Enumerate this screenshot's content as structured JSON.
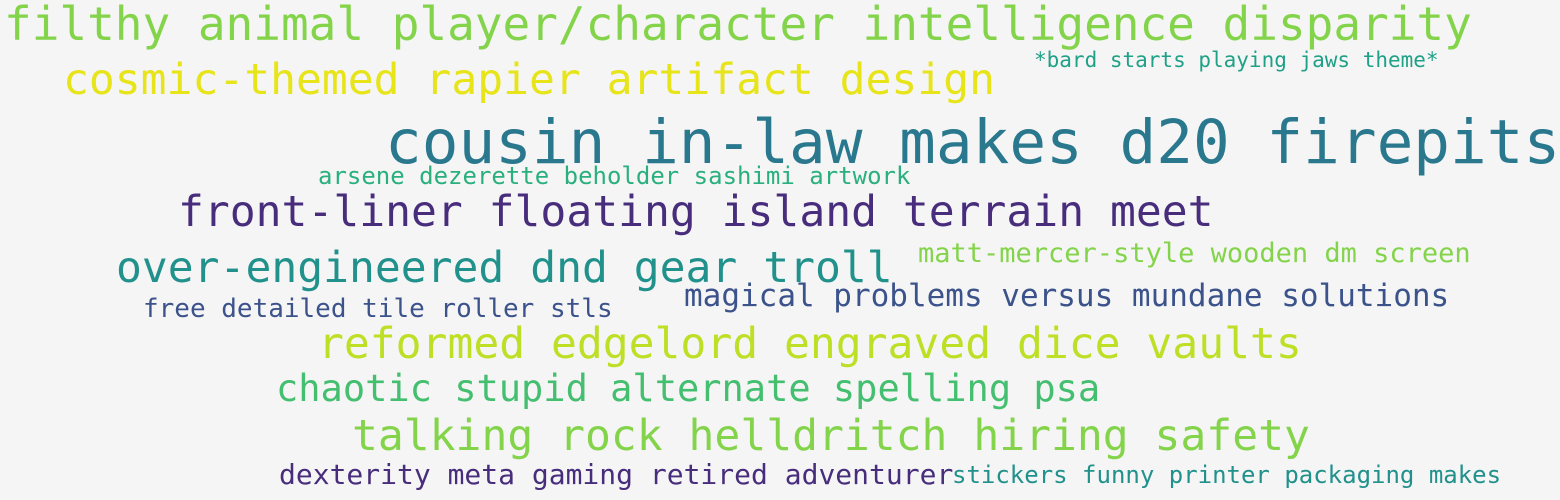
{
  "words": [
    "filthy animal player/character intelligence disparity",
    "*bard starts playing jaws theme*",
    "cosmic-themed rapier artifact design",
    "cousin in-law makes d20 firepits",
    "arsene dezerette beholder sashimi artwork",
    "front-liner floating island terrain meet",
    "matt-mercer-style wooden dm screen",
    "over-engineered dnd gear troll",
    "magical problems versus mundane solutions",
    "free detailed tile roller stls",
    "reformed edgelord engraved dice vaults",
    "chaotic stupid alternate spelling psa",
    "talking rock helldritch hiring safety",
    "dexterity meta gaming retired adventurer",
    "stickers funny printer packaging makes"
  ],
  "colors": {
    "background": "#f5f5f5",
    "palette": [
      "#472d7b",
      "#3b528b",
      "#2a788e",
      "#21918c",
      "#1fa187",
      "#2ab07f",
      "#44bf70",
      "#84d44b",
      "#bddf26",
      "#e7e419"
    ]
  }
}
